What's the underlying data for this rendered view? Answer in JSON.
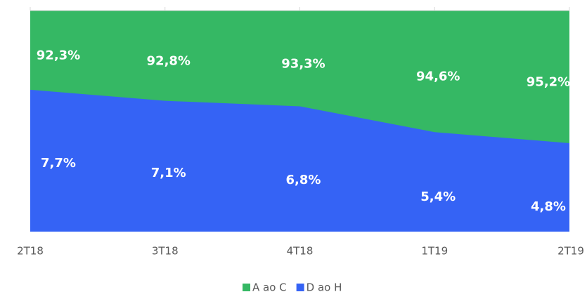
{
  "chart_data": {
    "type": "area",
    "categories": [
      "2T18",
      "3T18",
      "4T18",
      "1T19",
      "2T19"
    ],
    "series": [
      {
        "name": "A ao C",
        "color": "#35b864",
        "axis": "y",
        "values": [
          92.3,
          92.8,
          93.3,
          94.6,
          95.2
        ],
        "value_labels": [
          "92,3%",
          "92,8%",
          "93,3%",
          "94,6%",
          "95,2%"
        ]
      },
      {
        "name": "D ao H",
        "color": "#3563f5",
        "axis": "y2",
        "values": [
          7.7,
          7.1,
          6.8,
          5.4,
          4.8
        ],
        "value_labels": [
          "7,7%",
          "7,1%",
          "6,8%",
          "5,4%",
          "4,8%"
        ]
      }
    ],
    "ylim": [
      0,
      90
    ],
    "y2lim": [
      0,
      12
    ],
    "legend": "bottom"
  }
}
